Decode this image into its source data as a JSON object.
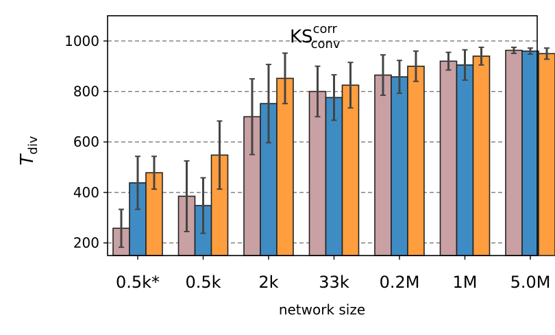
{
  "chart_data": {
    "type": "bar",
    "title": "KS",
    "title_sup": "corr",
    "title_sub": "conv",
    "xlabel": "network size",
    "ylabel": "T",
    "ylabel_sub": "div",
    "categories": [
      "0.5k*",
      "0.5k",
      "2k",
      "33k",
      "0.2M",
      "1M",
      "5.0M"
    ],
    "ylim": [
      150,
      1100
    ],
    "yticks": [
      200,
      400,
      600,
      800,
      1000
    ],
    "grid": "horizontal dashed",
    "legend": "none",
    "series": [
      {
        "color": "#c9a0a3",
        "values": [
          258,
          385,
          700,
          800,
          865,
          920,
          963
        ],
        "errors": [
          75,
          140,
          150,
          100,
          80,
          35,
          12
        ]
      },
      {
        "color": "#3f8cc4",
        "values": [
          438,
          348,
          752,
          776,
          858,
          905,
          960
        ],
        "errors": [
          105,
          110,
          155,
          90,
          65,
          60,
          12
        ]
      },
      {
        "color": "#ff9e3e",
        "values": [
          478,
          548,
          852,
          825,
          900,
          940,
          950
        ],
        "errors": [
          65,
          135,
          100,
          90,
          60,
          35,
          22
        ]
      }
    ]
  }
}
